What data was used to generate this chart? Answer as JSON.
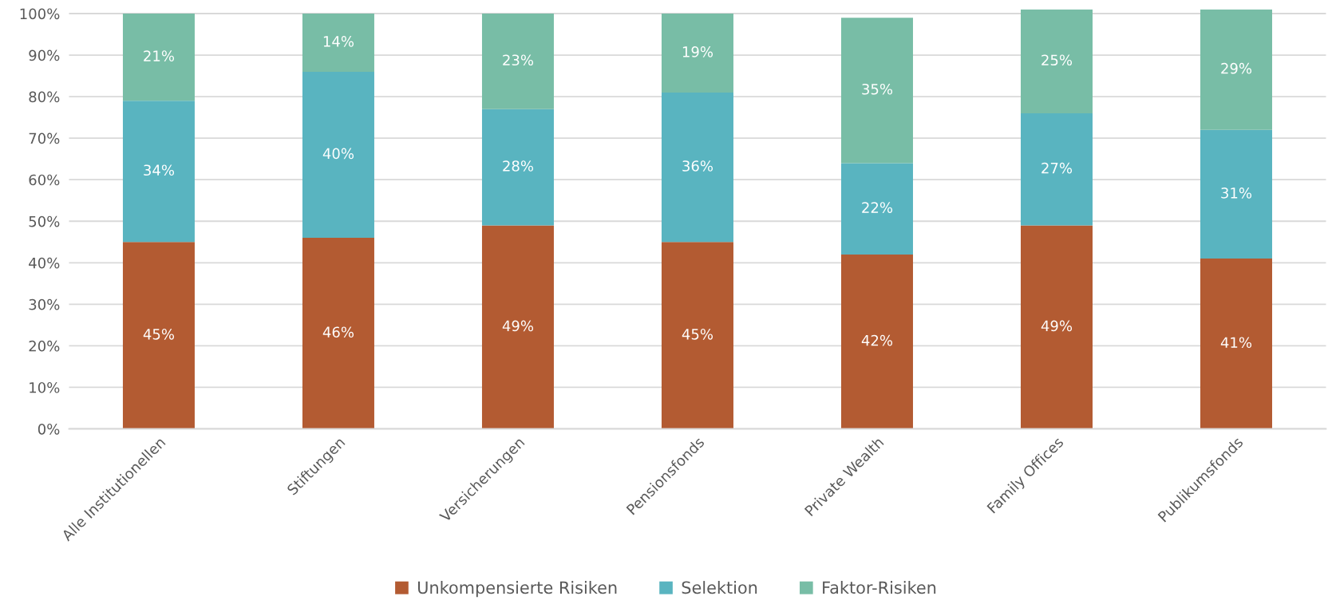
{
  "chart_data": {
    "type": "bar",
    "stacked": true,
    "categories": [
      "Alle Institutionellen",
      "Stiftungen",
      "Versicherungen",
      "Pensionsfonds",
      "Private Wealth",
      "Family Offices",
      "Publikumsfonds"
    ],
    "series": [
      {
        "name": "Unkompensierte Risiken",
        "color": "#b35b32",
        "values": [
          45,
          46,
          49,
          45,
          42,
          49,
          41
        ],
        "value_labels": [
          "45%",
          "46%",
          "49%",
          "45%",
          "42%",
          "49%",
          "41%"
        ]
      },
      {
        "name": "Selektion",
        "color": "#59b4c0",
        "values": [
          34,
          40,
          28,
          36,
          22,
          27,
          31
        ],
        "value_labels": [
          "34%",
          "40%",
          "28%",
          "36%",
          "22%",
          "27%",
          "31%"
        ]
      },
      {
        "name": "Faktor-Risiken",
        "color": "#78bda6",
        "values": [
          21,
          14,
          23,
          19,
          35,
          25,
          29
        ],
        "value_labels": [
          "21%",
          "14%",
          "23%",
          "19%",
          "35%",
          "25%",
          "29%"
        ]
      }
    ],
    "ylim": [
      0,
      101
    ],
    "yticks": [
      {
        "value": 0,
        "label": "0%"
      },
      {
        "value": 10,
        "label": "10%"
      },
      {
        "value": 20,
        "label": "20%"
      },
      {
        "value": 30,
        "label": "30%"
      },
      {
        "value": 40,
        "label": "40%"
      },
      {
        "value": 50,
        "label": "50%"
      },
      {
        "value": 60,
        "label": "60%"
      },
      {
        "value": 70,
        "label": "70%"
      },
      {
        "value": 80,
        "label": "80%"
      },
      {
        "value": 90,
        "label": "90%"
      },
      {
        "value": 100,
        "label": "100%"
      }
    ],
    "grid": "y",
    "legend": "bottom"
  }
}
